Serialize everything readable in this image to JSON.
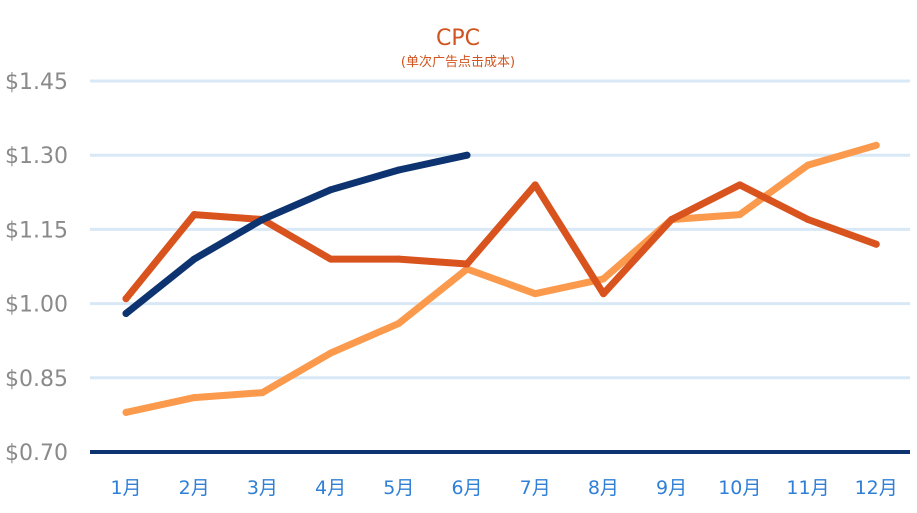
{
  "chart_data": {
    "type": "line",
    "title": "CPC",
    "subtitle": "(单次广告点击成本)",
    "xlabel": "",
    "ylabel": "",
    "categories": [
      "1月",
      "2月",
      "3月",
      "4月",
      "5月",
      "6月",
      "7月",
      "8月",
      "9月",
      "10月",
      "11月",
      "12月"
    ],
    "ylim": [
      0.7,
      1.45
    ],
    "yticks": [
      {
        "value": 1.45,
        "label": "$1.45"
      },
      {
        "value": 1.3,
        "label": "$1.30"
      },
      {
        "value": 1.15,
        "label": "$1.15"
      },
      {
        "value": 1.0,
        "label": "$1.00"
      },
      {
        "value": 0.85,
        "label": "$0.85"
      },
      {
        "value": 0.7,
        "label": "$0.70"
      }
    ],
    "grid": true,
    "legend": "none",
    "series": [
      {
        "color": "#fb9a4c",
        "values": [
          0.78,
          0.81,
          0.82,
          0.9,
          0.96,
          1.07,
          1.02,
          1.05,
          1.17,
          1.18,
          1.28,
          1.32
        ]
      },
      {
        "color": "#d9531e",
        "values": [
          1.01,
          1.18,
          1.17,
          1.09,
          1.09,
          1.08,
          1.24,
          1.02,
          1.17,
          1.24,
          1.17,
          1.12
        ]
      },
      {
        "color": "#0d3470",
        "values": [
          0.98,
          1.09,
          1.17,
          1.23,
          1.27,
          1.3,
          null,
          null,
          null,
          null,
          null,
          null
        ]
      }
    ]
  }
}
